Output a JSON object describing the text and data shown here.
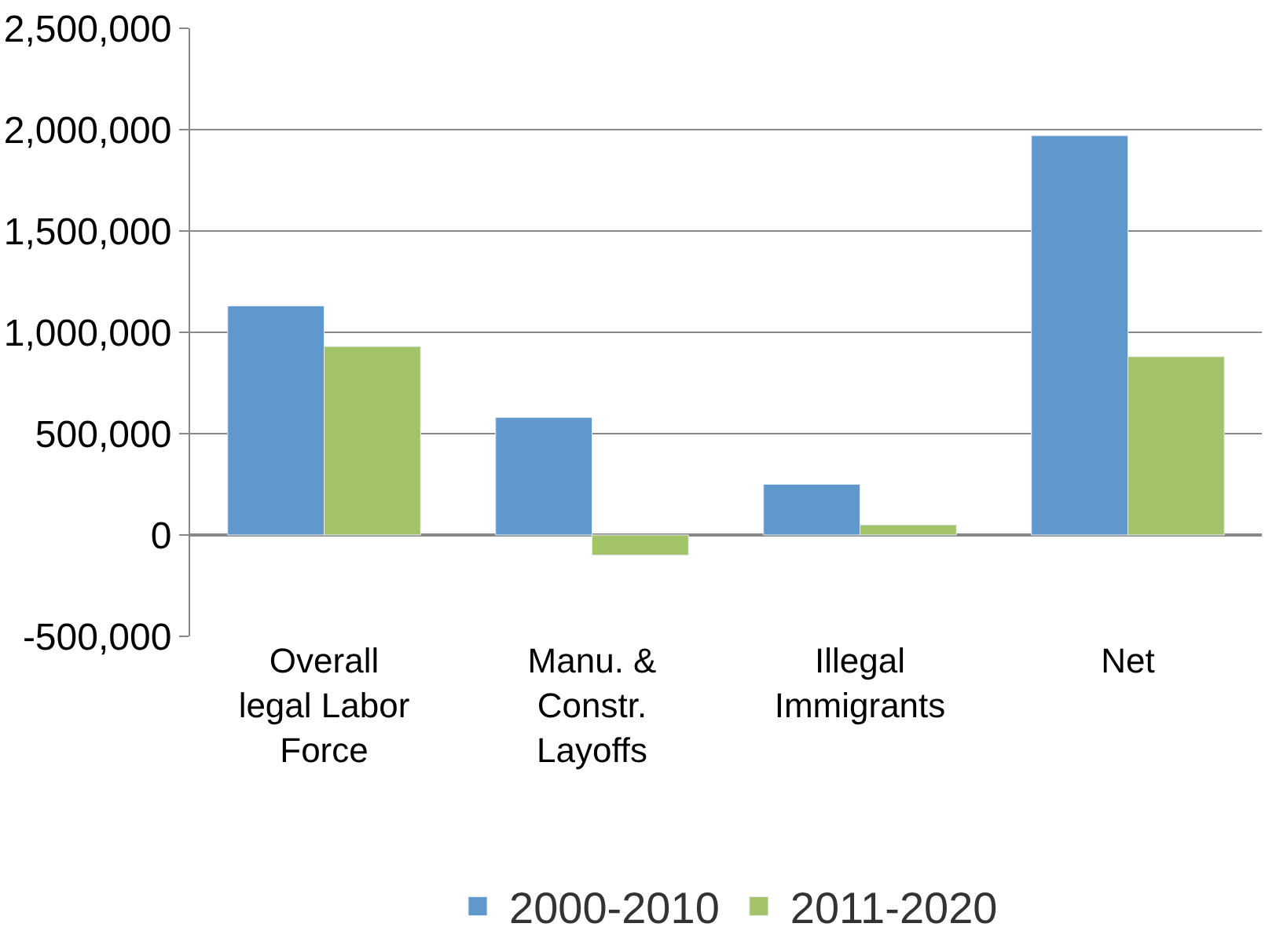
{
  "chart_data": {
    "type": "bar",
    "categories": [
      "Overall legal Labor Force",
      "Manu. & Constr. Layoffs",
      "Illegal Immigrants",
      "Net"
    ],
    "series": [
      {
        "name": "2000-2010",
        "color": "#6097cc",
        "values": [
          1130000,
          580000,
          250000,
          1970000
        ]
      },
      {
        "name": "2011-2020",
        "color": "#a2c368",
        "values": [
          930000,
          -100000,
          50000,
          880000
        ]
      }
    ],
    "ylim": [
      -500000,
      2500000
    ],
    "yticks": [
      {
        "value": -500000,
        "label": "-500,000"
      },
      {
        "value": 0,
        "label": "0"
      },
      {
        "value": 500000,
        "label": "500,000"
      },
      {
        "value": 1000000,
        "label": "1,000,000"
      },
      {
        "value": 1500000,
        "label": "1,500,000"
      },
      {
        "value": 2000000,
        "label": "2,000,000"
      },
      {
        "value": 2500000,
        "label": "2,500,000"
      }
    ],
    "grid": "y",
    "legend": "bottom"
  }
}
